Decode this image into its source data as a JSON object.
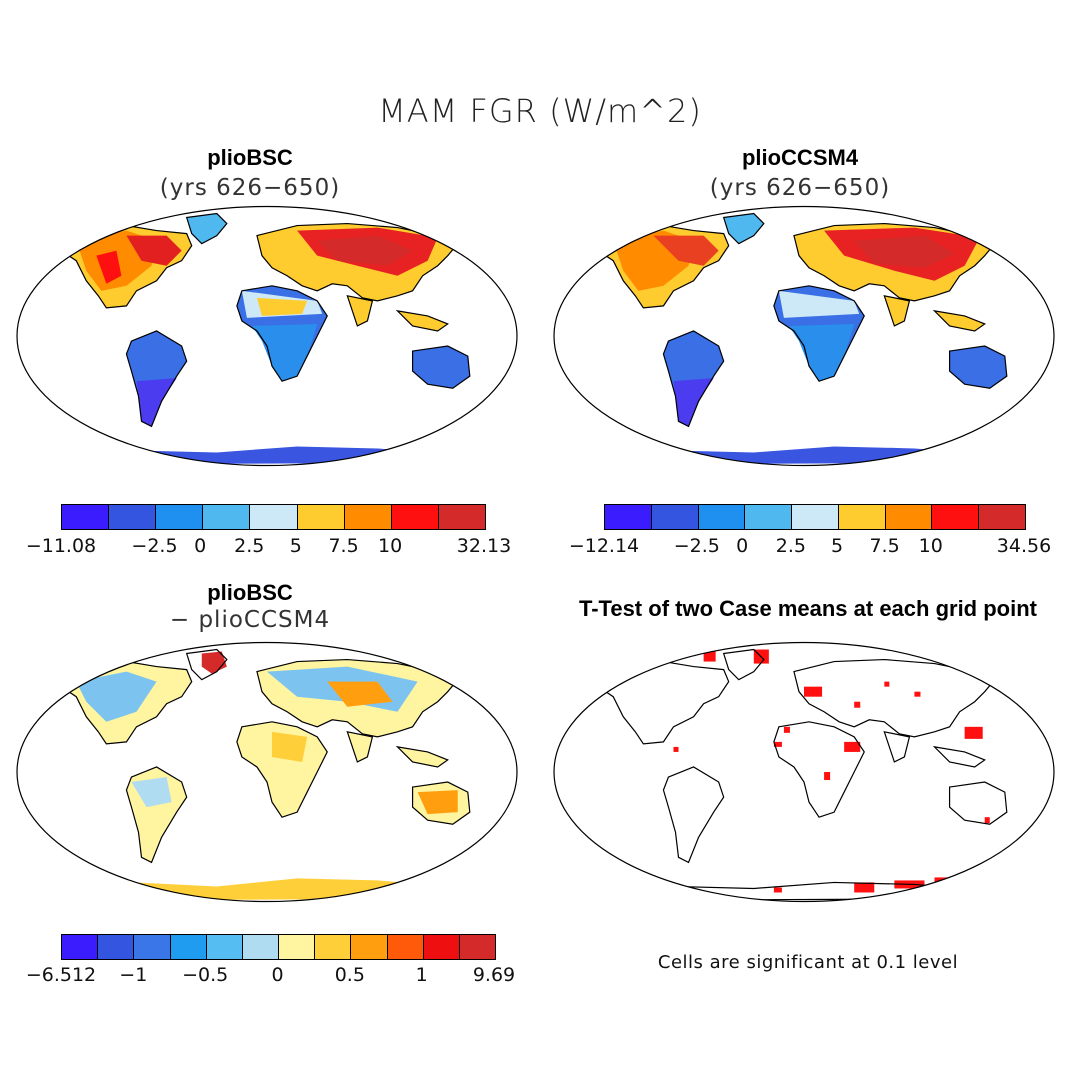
{
  "title": "MAM FGR (W/m^2)",
  "panels": {
    "top_left": {
      "title": "plioBSC",
      "subtitle": "(yrs 626−650)"
    },
    "top_right": {
      "title": "plioCCSM4",
      "subtitle": "(yrs 626−650)"
    },
    "bottom_left": {
      "title": "plioBSC",
      "subtitle": "− plioCCSM4"
    },
    "bottom_right": {
      "title": "T-Test of two Case means at each grid point"
    }
  },
  "colorbars": {
    "top_left": {
      "colors": [
        "#3a1cff",
        "#3355e0",
        "#1f8ff0",
        "#4fb8ef",
        "#cde8f6",
        "#ffcc2f",
        "#ff8c00",
        "#ff1010",
        "#d42a2a"
      ],
      "labels": [
        "−11.08",
        "−2.5",
        "0",
        "2.5",
        "5",
        "7.5",
        "10",
        "32.13"
      ]
    },
    "top_right": {
      "colors": [
        "#3a1cff",
        "#3355e0",
        "#1f8ff0",
        "#4fb8ef",
        "#cde8f6",
        "#ffcc2f",
        "#ff8c00",
        "#ff1010",
        "#d42a2a"
      ],
      "labels": [
        "−12.14",
        "−2.5",
        "0",
        "2.5",
        "5",
        "7.5",
        "10",
        "34.56"
      ]
    },
    "bottom_left": {
      "colors": [
        "#3a1cff",
        "#3355e0",
        "#3a76e8",
        "#1f9cf0",
        "#56bdf3",
        "#b0dcf2",
        "#fff4a0",
        "#ffcf3a",
        "#ff9f10",
        "#ff5a0a",
        "#ee1010",
        "#d42a2a"
      ],
      "labels": [
        "−6.512",
        "−1",
        "−0.5",
        "0",
        "0.5",
        "1",
        "9.69"
      ]
    }
  },
  "note": "Cells are significant at 0.1 level"
}
